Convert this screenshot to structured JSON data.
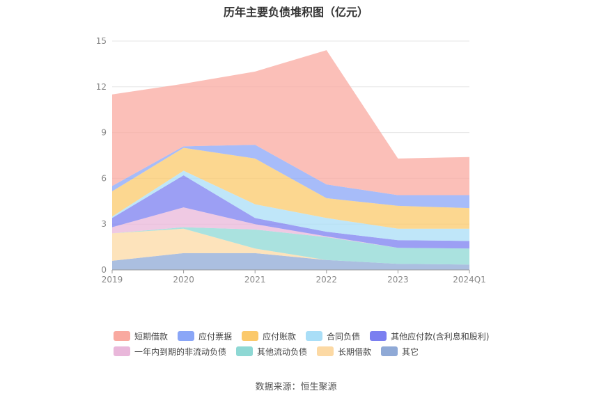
{
  "chart_data": {
    "type": "area",
    "stacked": true,
    "title": "历年主要负债堆积图（亿元）",
    "categories": [
      "2019",
      "2020",
      "2021",
      "2022",
      "2023",
      "2024Q1"
    ],
    "ylim": [
      0,
      15
    ],
    "yticks": [
      "0",
      "3",
      "6",
      "9",
      "12",
      "15"
    ],
    "grid": true,
    "legend_position": "bottom",
    "series": [
      {
        "name": "其它",
        "color": "#8fa9d6",
        "values": [
          0.6,
          1.1,
          1.1,
          0.65,
          0.4,
          0.35
        ]
      },
      {
        "name": "长期借款",
        "color": "#fcd9a4",
        "values": [
          1.8,
          1.6,
          0.3,
          0,
          0,
          0
        ]
      },
      {
        "name": "其他流动负债",
        "color": "#8ed8d4",
        "values": [
          0,
          0.1,
          1.25,
          1.5,
          1.05,
          1.05
        ]
      },
      {
        "name": "一年内到期的非流动负债",
        "color": "#e9b7da",
        "values": [
          0.4,
          1.3,
          0.35,
          0.05,
          0,
          0
        ]
      },
      {
        "name": "其他应付款(含利息和股利)",
        "color": "#7b7ff0",
        "values": [
          0.6,
          2.1,
          0.4,
          0.3,
          0.5,
          0.5
        ]
      },
      {
        "name": "合同负债",
        "color": "#a9def7",
        "values": [
          0.1,
          0.3,
          0.9,
          0.9,
          0.75,
          0.8
        ]
      },
      {
        "name": "应付账款",
        "color": "#fbc96b",
        "values": [
          1.65,
          1.5,
          3.0,
          1.3,
          1.5,
          1.35
        ]
      },
      {
        "name": "应付票据",
        "color": "#8aa6f7",
        "values": [
          0.35,
          0.1,
          0.9,
          0.9,
          0.7,
          0.85
        ]
      },
      {
        "name": "短期借款",
        "color": "#f9a9a0",
        "values": [
          6.0,
          4.1,
          4.8,
          8.8,
          2.4,
          2.5
        ]
      }
    ]
  },
  "legend": [
    [
      {
        "label": "短期借款",
        "color": "#f9a9a0"
      },
      {
        "label": "应付票据",
        "color": "#8aa6f7"
      },
      {
        "label": "应付账款",
        "color": "#fbc96b"
      },
      {
        "label": "合同负债",
        "color": "#a9def7"
      },
      {
        "label": "其他应付款(含利息和股利)",
        "color": "#7b7ff0"
      }
    ],
    [
      {
        "label": "一年内到期的非流动负债",
        "color": "#e9b7da"
      },
      {
        "label": "其他流动负债",
        "color": "#8ed8d4"
      },
      {
        "label": "长期借款",
        "color": "#fcd9a4"
      },
      {
        "label": "其它",
        "color": "#8fa9d6"
      }
    ]
  ],
  "source": "数据来源：恒生聚源"
}
